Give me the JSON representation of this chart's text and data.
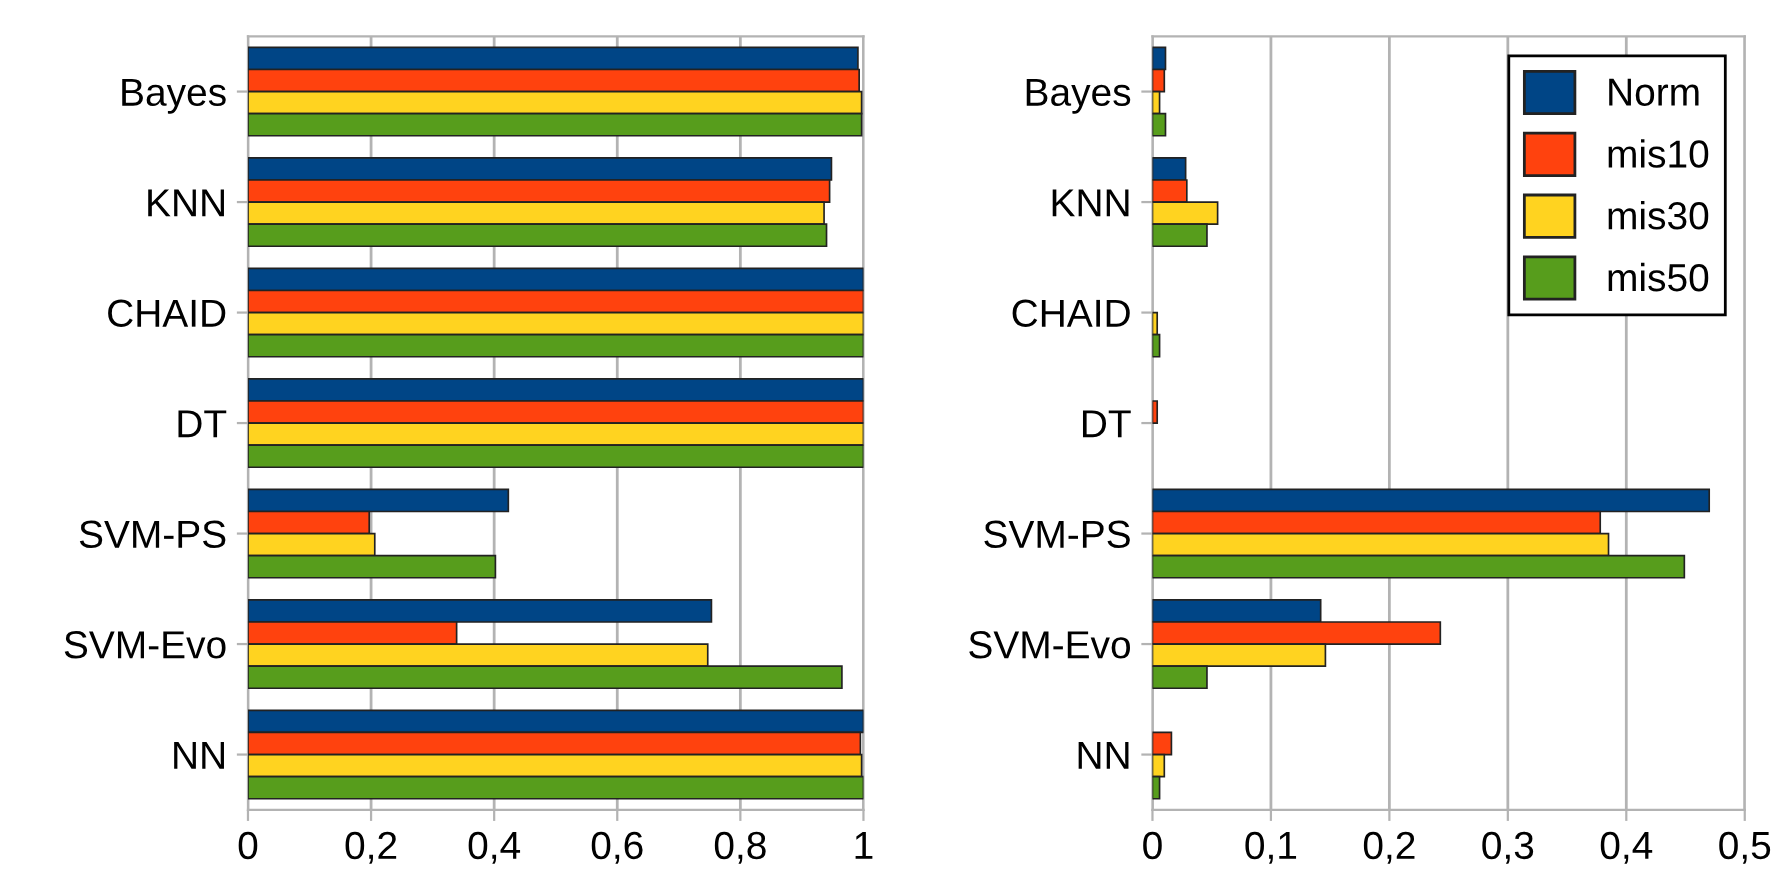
{
  "chart_data": [
    {
      "type": "bar",
      "orientation": "horizontal",
      "categories": [
        "Bayes",
        "KNN",
        "CHAID",
        "DT",
        "SVM-PS",
        "SVM-Evo",
        "NN"
      ],
      "series": [
        {
          "color": "#004586",
          "values": [
            0.991,
            0.948,
            1,
            1,
            0.423,
            0.753,
            1
          ]
        },
        {
          "color": "#ff420e",
          "values": [
            0.993,
            0.945,
            1,
            1,
            0.197,
            0.339,
            0.995
          ]
        },
        {
          "color": "#ffd320",
          "values": [
            0.997,
            0.936,
            1,
            1,
            0.206,
            0.747,
            0.997
          ]
        },
        {
          "color": "#579d1c",
          "values": [
            0.997,
            0.94,
            1,
            1,
            0.402,
            0.965,
            1
          ]
        }
      ],
      "xlim": [
        0,
        1
      ],
      "xticks": [
        0,
        {
          "value": 0.2,
          "label": "0,2"
        },
        {
          "value": 0.4,
          "label": "0,4"
        },
        {
          "value": 0.6,
          "label": "0,6"
        },
        {
          "value": 0.8,
          "label": "0,8"
        },
        1
      ],
      "grid": "x",
      "legend": false
    },
    {
      "type": "bar",
      "orientation": "horizontal",
      "categories": [
        "Bayes",
        "KNN",
        "CHAID",
        "DT",
        "SVM-PS",
        "SVM-Evo",
        "NN"
      ],
      "series": [
        {
          "name": "Norm",
          "color": "#004586",
          "values": [
            0.011,
            0.028,
            null,
            null,
            0.47,
            0.142,
            null
          ]
        },
        {
          "name": "mis10",
          "color": "#ff420e",
          "values": [
            0.01,
            0.029,
            null,
            0.004,
            0.378,
            0.243,
            0.016
          ]
        },
        {
          "name": "mis30",
          "color": "#ffd320",
          "values": [
            0.006,
            0.055,
            0.004,
            null,
            0.385,
            0.146,
            0.01
          ]
        },
        {
          "name": "mis50",
          "color": "#579d1c",
          "values": [
            0.011,
            0.046,
            0.006,
            null,
            0.449,
            0.046,
            0.006
          ]
        }
      ],
      "xlim": [
        0,
        0.5
      ],
      "xticks": [
        0,
        {
          "value": 0.1,
          "label": "0,1"
        },
        {
          "value": 0.2,
          "label": "0,2"
        },
        {
          "value": 0.3,
          "label": "0,3"
        },
        {
          "value": 0.4,
          "label": "0,4"
        },
        {
          "value": 0.5,
          "label": "0,5"
        }
      ],
      "grid": "x",
      "legend": "top right"
    }
  ]
}
